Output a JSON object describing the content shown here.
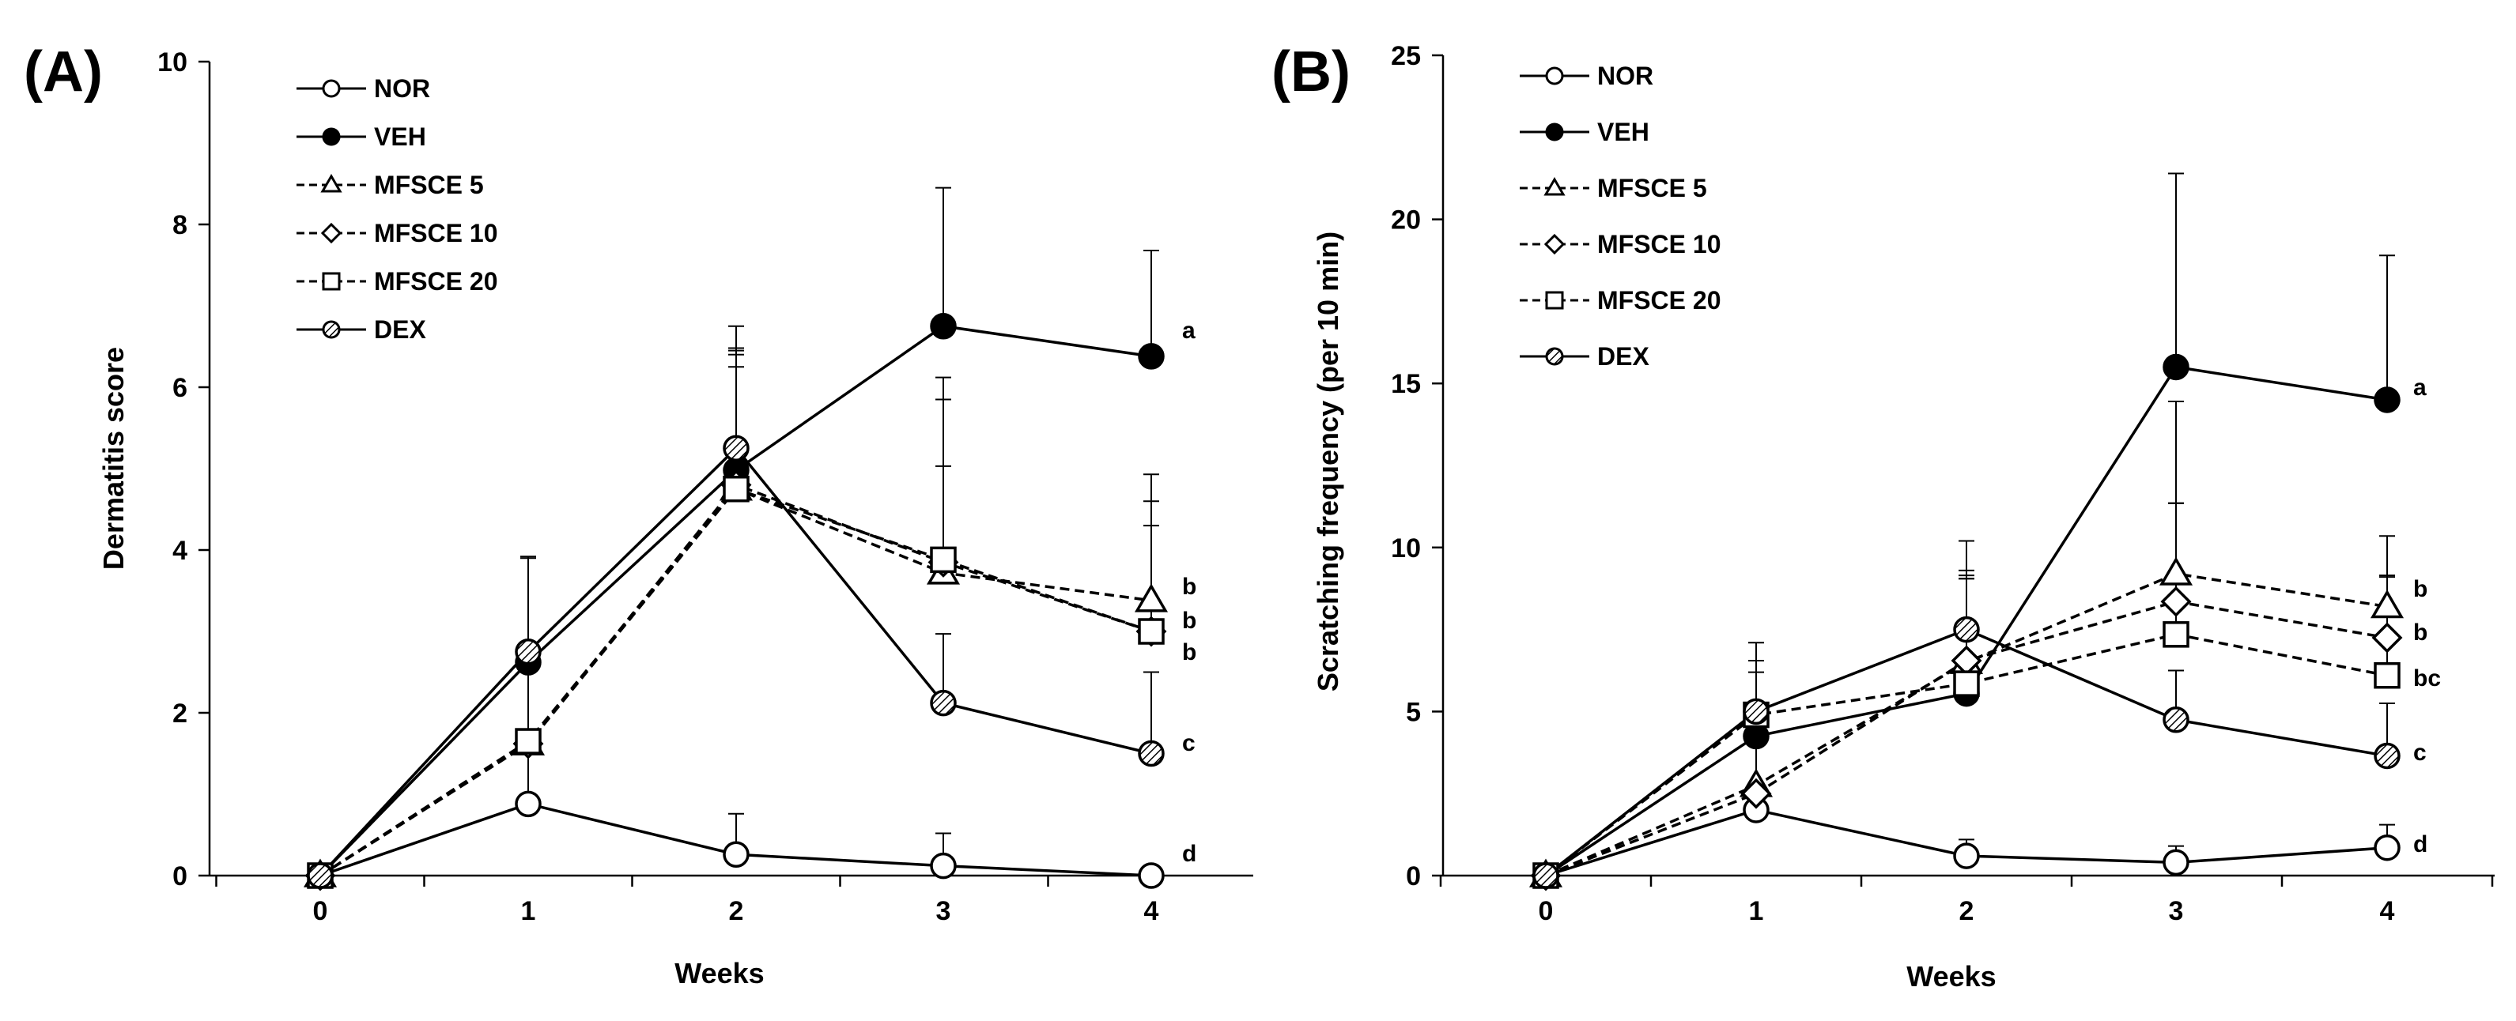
{
  "chart_data": [
    {
      "type": "line",
      "panel_label": "(A)",
      "title": "",
      "xlabel": "Weeks",
      "ylabel": "Dermatitis score",
      "x": [
        0,
        1,
        2,
        3,
        4
      ],
      "x_tick_labels": [
        "0",
        "1",
        "2",
        "3",
        "4"
      ],
      "ylim": [
        0,
        10
      ],
      "y_ticks": [
        0,
        2,
        4,
        6,
        8,
        10
      ],
      "y_tick_labels": [
        "0",
        "2",
        "4",
        "6",
        "8",
        "10"
      ],
      "grid": false,
      "legend_position": "top-left",
      "series": [
        {
          "name": "NOR",
          "marker": "circle-open",
          "line": "solid",
          "values": [
            0,
            0.88,
            0.26,
            0.12,
            0.0
          ],
          "errors": [
            0,
            0.9,
            0.5,
            0.4,
            0
          ],
          "sig": "d"
        },
        {
          "name": "VEH",
          "marker": "circle-filled",
          "line": "solid",
          "values": [
            0,
            2.62,
            4.98,
            6.75,
            6.38
          ],
          "errors": [
            0,
            1.3,
            1.5,
            1.7,
            1.3
          ],
          "sig": "a"
        },
        {
          "name": "MFSCE 5",
          "marker": "triangle",
          "line": "dashed",
          "values": [
            0,
            1.62,
            4.75,
            3.72,
            3.38
          ],
          "errors": [
            0,
            1.2,
            1.7,
            2.4,
            1.55
          ],
          "sig": "b"
        },
        {
          "name": "MFSCE 10",
          "marker": "diamond",
          "line": "dashed",
          "values": [
            0,
            1.62,
            4.8,
            3.85,
            3.0
          ],
          "errors": [
            0,
            1.1,
            1.6,
            2.0,
            1.6
          ],
          "sig": "b"
        },
        {
          "name": "MFSCE 20",
          "marker": "square",
          "line": "dashed",
          "values": [
            0,
            1.65,
            4.75,
            3.88,
            3.0
          ],
          "errors": [
            0,
            1.0,
            1.5,
            1.15,
            1.3
          ],
          "sig": "b"
        },
        {
          "name": "DEX",
          "marker": "circle-hatched",
          "line": "solid",
          "values": [
            0,
            2.75,
            5.25,
            2.12,
            1.5
          ],
          "errors": [
            0,
            1.15,
            1.5,
            0.85,
            1.0
          ],
          "sig": "c"
        }
      ]
    },
    {
      "type": "line",
      "panel_label": "(B)",
      "title": "",
      "xlabel": "Weeks",
      "ylabel": "Scratching frequency (per 10 min)",
      "x": [
        0,
        1,
        2,
        3,
        4
      ],
      "x_tick_labels": [
        "0",
        "1",
        "2",
        "3",
        "4"
      ],
      "ylim": [
        0,
        25
      ],
      "y_ticks": [
        0,
        5,
        10,
        15,
        20,
        25
      ],
      "y_tick_labels": [
        "0",
        "5",
        "10",
        "15",
        "20",
        "25"
      ],
      "grid": false,
      "legend_position": "top-left",
      "series": [
        {
          "name": "NOR",
          "marker": "circle-open",
          "line": "solid",
          "values": [
            0,
            2.0,
            0.6,
            0.4,
            0.85
          ],
          "errors": [
            0,
            0.8,
            0.5,
            0.5,
            0.7
          ],
          "sig": "d"
        },
        {
          "name": "VEH",
          "marker": "circle-filled",
          "line": "solid",
          "values": [
            0,
            4.25,
            5.55,
            15.5,
            14.5
          ],
          "errors": [
            0,
            2.3,
            3.5,
            5.9,
            4.4
          ],
          "sig": "a"
        },
        {
          "name": "MFSCE 5",
          "marker": "triangle",
          "line": "dashed",
          "values": [
            0,
            2.75,
            6.5,
            9.2,
            8.2
          ],
          "errors": [
            0,
            2.1,
            2.8,
            5.25,
            2.15
          ],
          "sig": "b"
        },
        {
          "name": "MFSCE 10",
          "marker": "diamond",
          "line": "dashed",
          "values": [
            0,
            2.5,
            6.55,
            8.35,
            7.25
          ],
          "errors": [
            0,
            2.0,
            2.6,
            3.0,
            1.9
          ],
          "sig": "b"
        },
        {
          "name": "MFSCE 20",
          "marker": "square",
          "line": "dashed",
          "values": [
            0,
            4.9,
            5.85,
            7.35,
            6.1
          ],
          "errors": [
            0,
            1.3,
            3.2,
            4.0,
            3.0
          ],
          "sig": "bc"
        },
        {
          "name": "DEX",
          "marker": "circle-hatched",
          "line": "solid",
          "values": [
            0,
            5.0,
            7.5,
            4.75,
            3.65
          ],
          "errors": [
            0,
            2.1,
            2.7,
            1.5,
            1.6
          ],
          "sig": "c"
        }
      ]
    }
  ]
}
